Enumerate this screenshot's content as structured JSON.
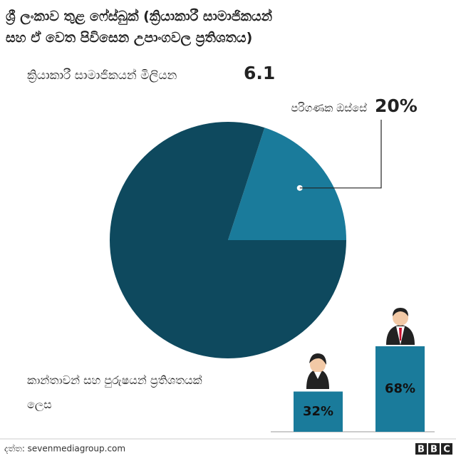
{
  "title": "ශ්‍රී ලංකාව තුළ ෆේස්බුක් (ක්‍රියාකාරී සාමාජිකයන් සහ ඒ වෙත පිවිසෙන උපාංගවල ප්‍රතිශතය)",
  "subtitle": "ක්‍රියාකාරී සාමාජිකයන් මිලියන",
  "subtitle_value": 6.1,
  "chart_data": [
    {
      "type": "pie",
      "categories": [
        "පරිගණක ඔස්සේ",
        null
      ],
      "values": [
        20,
        80
      ],
      "value_labels": [
        "20%",
        null
      ],
      "colors": [
        "#1a7b9b",
        "#0e495e"
      ]
    },
    {
      "type": "bar",
      "title": "කාන්තාවන් සහ පුරුෂයන් ප්‍රතිශතයක් ලෙස",
      "categories": [
        null,
        null
      ],
      "values": [
        32,
        68
      ],
      "value_labels": [
        "32%",
        "68%"
      ],
      "color": "#1a7b9b"
    }
  ],
  "source": "දත්ත: sevenmediagroup.com",
  "logo": [
    "B",
    "B",
    "C"
  ]
}
